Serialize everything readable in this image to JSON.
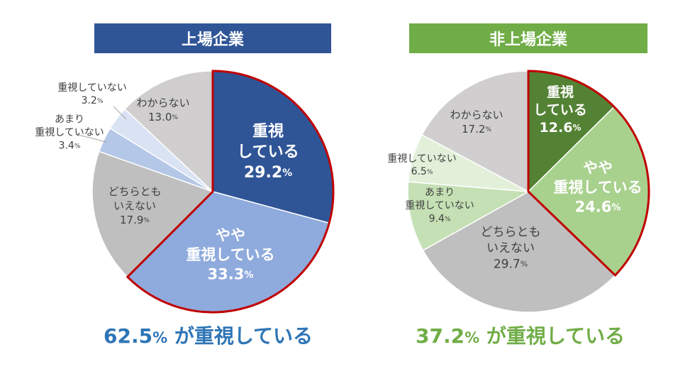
{
  "chart_data": [
    {
      "type": "pie",
      "title": "上場企業",
      "header_color": "#2f5597",
      "center": [
        300,
        270
      ],
      "radius": 170,
      "summary": {
        "value": "62.5",
        "unit": "%",
        "text": "が重視している",
        "color": "#2e75b6"
      },
      "slices": [
        {
          "label": [
            "重視",
            "している"
          ],
          "value": 29.2,
          "value_text": "29.2",
          "unit": "%",
          "color": "#2f5597",
          "text_color": "#ffffff",
          "bold": true,
          "highlight": true,
          "label_pos": [
            378,
            215
          ],
          "font": 22
        },
        {
          "label": [
            "やや",
            "重視している"
          ],
          "value": 33.3,
          "value_text": "33.3",
          "unit": "%",
          "color": "#8faadc",
          "text_color": "#ffffff",
          "bold": true,
          "highlight": true,
          "label_pos": [
            325,
            360
          ],
          "font": 21
        },
        {
          "label": [
            "どちらとも",
            "いえない"
          ],
          "value": 17.9,
          "value_text": "17.9",
          "unit": "%",
          "color": "#bfbfbf",
          "text_color": "#404040",
          "bold": false,
          "highlight": false,
          "label_pos": [
            190,
            290
          ],
          "font": 15
        },
        {
          "label": [
            "あまり",
            "重視していない"
          ],
          "value": 3.4,
          "value_text": "3.4",
          "unit": "%",
          "color": "#b4c7e7",
          "text_color": "#404040",
          "bold": false,
          "highlight": false,
          "label_pos": [
            98,
            187
          ],
          "font": 14,
          "callout": [
            [
              110,
              190
            ],
            [
              150,
              200
            ]
          ]
        },
        {
          "label": [
            "重視していない"
          ],
          "value": 3.2,
          "value_text": "3.2",
          "unit": "%",
          "color": "#dae3f3",
          "text_color": "#404040",
          "bold": false,
          "highlight": false,
          "label_pos": [
            130,
            133
          ],
          "font": 14,
          "callout": [
            [
              160,
              150
            ],
            [
              178,
              168
            ]
          ]
        },
        {
          "label": [
            "わからない"
          ],
          "value": 13.0,
          "value_text": "13.0",
          "unit": "%",
          "color": "#d0cece",
          "text_color": "#404040",
          "bold": false,
          "highlight": false,
          "label_pos": [
            230,
            155
          ],
          "font": 15
        }
      ]
    },
    {
      "type": "pie",
      "title": "非上場企業",
      "header_color": "#70ad47",
      "center": [
        745,
        270
      ],
      "radius": 170,
      "summary": {
        "value": "37.2",
        "unit": "%",
        "text": "が重視している",
        "color": "#70ad47"
      },
      "slices": [
        {
          "label": [
            "重視",
            "している"
          ],
          "value": 12.6,
          "value_text": "12.6",
          "unit": "%",
          "color": "#548235",
          "text_color": "#ffffff",
          "bold": true,
          "highlight": true,
          "label_pos": [
            790,
            155
          ],
          "font": 19
        },
        {
          "label": [
            "やや",
            "重視している"
          ],
          "value": 24.6,
          "value_text": "24.6",
          "unit": "%",
          "color": "#a9d18e",
          "text_color": "#ffffff",
          "bold": true,
          "highlight": true,
          "label_pos": [
            843,
            265
          ],
          "font": 21
        },
        {
          "label": [
            "どちらとも",
            "いえない"
          ],
          "value": 29.7,
          "value_text": "29.7",
          "unit": "%",
          "color": "#bfbfbf",
          "text_color": "#404040",
          "bold": false,
          "highlight": false,
          "label_pos": [
            720,
            350
          ],
          "font": 17
        },
        {
          "label": [
            "あまり",
            "重視していない"
          ],
          "value": 9.4,
          "value_text": "9.4",
          "unit": "%",
          "color": "#c5e0b4",
          "text_color": "#404040",
          "bold": false,
          "highlight": false,
          "label_pos": [
            620,
            290
          ],
          "font": 14
        },
        {
          "label": [
            "重視していない"
          ],
          "value": 6.5,
          "value_text": "6.5",
          "unit": "%",
          "color": "#e2f0d9",
          "text_color": "#404040",
          "bold": false,
          "highlight": false,
          "label_pos": [
            595,
            233
          ],
          "font": 14
        },
        {
          "label": [
            "わからない"
          ],
          "value": 17.2,
          "value_text": "17.2",
          "unit": "%",
          "color": "#d0cece",
          "text_color": "#404040",
          "bold": false,
          "highlight": false,
          "label_pos": [
            672,
            172
          ],
          "font": 15
        }
      ]
    }
  ]
}
